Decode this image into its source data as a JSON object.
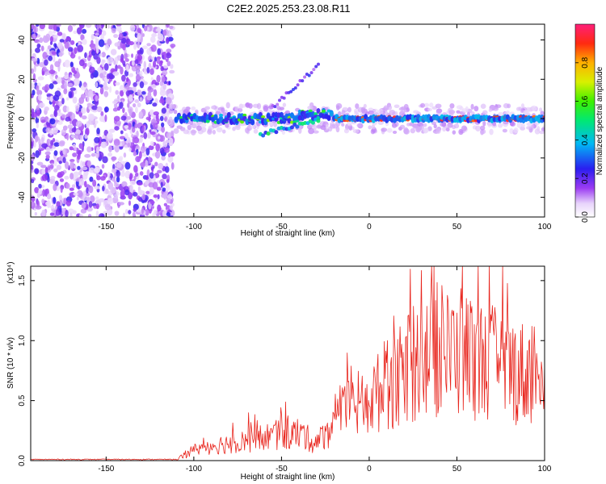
{
  "figure_title": "C2E2.2025.253.23.08.R11",
  "chart_data": [
    {
      "type": "heatmap",
      "title": "C2E2.2025.253.23.08.R11",
      "xlabel": "Height of straight line (km)",
      "ylabel": "Frequency (Hz)",
      "xlim": [
        -193,
        100
      ],
      "ylim": [
        -50,
        48
      ],
      "xticks": [
        -150,
        -100,
        -50,
        0,
        50,
        100
      ],
      "yticks": [
        40,
        20,
        0,
        -20,
        -40
      ],
      "colorbar": {
        "label": "Normalized spectral amplitude",
        "range": [
          0,
          1
        ],
        "ticks": [
          "0.0",
          "0.2",
          "0.4",
          "0.6",
          "0.8"
        ]
      },
      "features": [
        {
          "name": "noise region",
          "x_range": [
            -193,
            -112
          ],
          "y_range": [
            -50,
            48
          ],
          "amplitude": "0.1-0.3"
        },
        {
          "name": "main signal band",
          "x_range": [
            -110,
            100
          ],
          "center_hz": 0,
          "amplitude": "0.3-0.9"
        },
        {
          "name": "secondary branch",
          "x_range": [
            -60,
            -30
          ],
          "center_hz": -8,
          "amplitude": "0.2-0.5"
        },
        {
          "name": "upper streak",
          "x_range": [
            -55,
            -30
          ],
          "y_range": [
            5,
            29
          ],
          "amplitude": "0.1-0.3"
        }
      ]
    },
    {
      "type": "line",
      "title": "",
      "xlabel": "Height of straight line (km)",
      "ylabel": "SNR (10 * v/v)",
      "y_multiplier": "(x10⁴)",
      "xlim": [
        -193,
        100
      ],
      "ylim": [
        0,
        1.62
      ],
      "xticks": [
        -150,
        -100,
        -50,
        0,
        50,
        100
      ],
      "yticks": [
        "0.0",
        "0.5",
        "1.0",
        "1.5"
      ],
      "series": [
        {
          "name": "SNR",
          "color": "#e8231b",
          "envelope": [
            {
              "x": -193,
              "y": 0.01
            },
            {
              "x": -110,
              "y": 0.01
            },
            {
              "x": -100,
              "y": 0.1
            },
            {
              "x": -90,
              "y": 0.14
            },
            {
              "x": -70,
              "y": 0.18
            },
            {
              "x": -55,
              "y": 0.23
            },
            {
              "x": -40,
              "y": 0.25
            },
            {
              "x": -30,
              "y": 0.16
            },
            {
              "x": -20,
              "y": 0.35
            },
            {
              "x": -10,
              "y": 0.5
            },
            {
              "x": 0,
              "y": 0.55
            },
            {
              "x": 10,
              "y": 0.7
            },
            {
              "x": 20,
              "y": 0.8
            },
            {
              "x": 30,
              "y": 0.95
            },
            {
              "x": 50,
              "y": 1.0
            },
            {
              "x": 70,
              "y": 0.9
            },
            {
              "x": 90,
              "y": 0.8
            },
            {
              "x": 100,
              "y": 0.9
            }
          ]
        }
      ]
    }
  ]
}
